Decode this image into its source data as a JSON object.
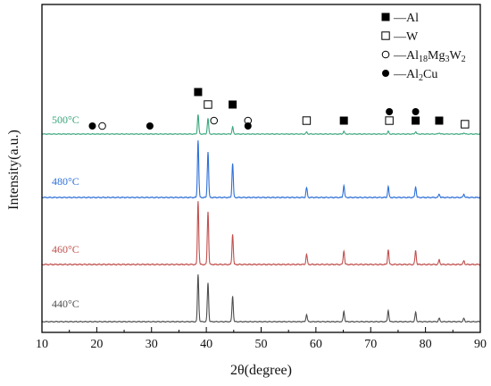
{
  "chart_data": {
    "type": "line",
    "title": "",
    "xlabel": "2θ(degree)",
    "ylabel": "Intensity(a.u.)",
    "xlim": [
      10,
      90
    ],
    "xticks": [
      "10",
      "20",
      "30",
      "40",
      "50",
      "60",
      "70",
      "80",
      "90"
    ],
    "y_units": "arbitrary",
    "series": [
      {
        "name": "440°C",
        "color": "#4d4d4d",
        "baseline": 0,
        "peaks": [
          {
            "x": 38.5,
            "height": 100
          },
          {
            "x": 40.3,
            "height": 82
          },
          {
            "x": 44.8,
            "height": 54
          },
          {
            "x": 58.3,
            "height": 15
          },
          {
            "x": 65.1,
            "height": 22
          },
          {
            "x": 73.2,
            "height": 24
          },
          {
            "x": 78.2,
            "height": 20
          },
          {
            "x": 82.5,
            "height": 7
          },
          {
            "x": 87.0,
            "height": 7
          }
        ]
      },
      {
        "name": "460°C",
        "color": "#c0504d",
        "baseline": 100,
        "peaks": [
          {
            "x": 38.5,
            "height": 100
          },
          {
            "x": 40.3,
            "height": 84
          },
          {
            "x": 44.8,
            "height": 48
          },
          {
            "x": 58.3,
            "height": 16
          },
          {
            "x": 65.1,
            "height": 22
          },
          {
            "x": 73.2,
            "height": 24
          },
          {
            "x": 78.2,
            "height": 22
          },
          {
            "x": 82.5,
            "height": 7
          },
          {
            "x": 87.0,
            "height": 6
          }
        ]
      },
      {
        "name": "480°C",
        "color": "#2e6fd8",
        "baseline": 200,
        "peaks": [
          {
            "x": 38.5,
            "height": 100
          },
          {
            "x": 40.3,
            "height": 80
          },
          {
            "x": 44.8,
            "height": 60
          },
          {
            "x": 58.3,
            "height": 17
          },
          {
            "x": 65.1,
            "height": 21
          },
          {
            "x": 73.2,
            "height": 19
          },
          {
            "x": 78.2,
            "height": 19
          },
          {
            "x": 82.5,
            "height": 6
          },
          {
            "x": 87.0,
            "height": 6
          }
        ]
      },
      {
        "name": "500°C",
        "color": "#3aa67c",
        "baseline": 300,
        "peaks": [
          {
            "x": 38.5,
            "height": 50
          },
          {
            "x": 40.3,
            "height": 40
          },
          {
            "x": 44.8,
            "height": 18
          },
          {
            "x": 58.3,
            "height": 5
          },
          {
            "x": 65.1,
            "height": 7
          },
          {
            "x": 73.2,
            "height": 7
          },
          {
            "x": 78.2,
            "height": 6
          },
          {
            "x": 82.5,
            "height": 3
          },
          {
            "x": 87.0,
            "height": 3
          }
        ]
      }
    ],
    "phase_markers": [
      {
        "phase": "Al",
        "x": 38.5,
        "row": 1
      },
      {
        "phase": "W",
        "x": 40.3,
        "row": 2
      },
      {
        "phase": "Al",
        "x": 44.8,
        "row": 2
      },
      {
        "phase": "Al2Cu",
        "x": 19.2,
        "row": 4
      },
      {
        "phase": "Al18Mg3W2",
        "x": 21.0,
        "row": 4
      },
      {
        "phase": "Al2Cu",
        "x": 29.7,
        "row": 4
      },
      {
        "phase": "Al18Mg3W2",
        "x": 41.4,
        "row": 3
      },
      {
        "phase": "Al18Mg3W2",
        "x": 47.6,
        "row": 3
      },
      {
        "phase": "Al2Cu",
        "x": 47.6,
        "row": 4
      },
      {
        "phase": "W",
        "x": 58.3,
        "row": 3
      },
      {
        "phase": "Al",
        "x": 65.1,
        "row": 3
      },
      {
        "phase": "Al2Cu",
        "x": 73.4,
        "row": 3.6
      },
      {
        "phase": "W",
        "x": 73.4,
        "row": 3
      },
      {
        "phase": "Al2Cu",
        "x": 78.2,
        "row": 3.6
      },
      {
        "phase": "Al",
        "x": 78.2,
        "row": 3
      },
      {
        "phase": "Al",
        "x": 82.5,
        "row": 3
      },
      {
        "phase": "W",
        "x": 87.2,
        "row": 3.3
      }
    ],
    "legend": {
      "placement": "top-right",
      "entries": [
        {
          "phase": "Al",
          "symbol": "filled-square",
          "prefix": "—",
          "base": "Al",
          "sub1": "",
          "mid": "",
          "sub2": "",
          "tail": "",
          "sub3": ""
        },
        {
          "phase": "W",
          "symbol": "open-square",
          "prefix": "—",
          "base": "W",
          "sub1": "",
          "mid": "",
          "sub2": "",
          "tail": "",
          "sub3": ""
        },
        {
          "phase": "Al18Mg3W2",
          "symbol": "open-circle",
          "prefix": "—",
          "base": "Al",
          "sub1": "18",
          "mid": "Mg",
          "sub2": "3",
          "tail": "W",
          "sub3": "2"
        },
        {
          "phase": "Al2Cu",
          "symbol": "filled-circle",
          "prefix": "—",
          "base": "Al",
          "sub1": "2",
          "mid": "Cu",
          "sub2": "",
          "tail": "",
          "sub3": ""
        }
      ]
    }
  }
}
